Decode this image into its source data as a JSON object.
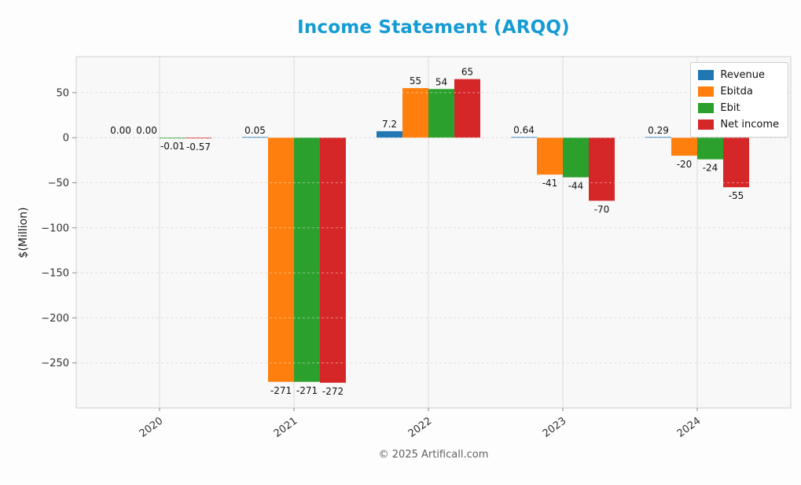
{
  "page": {
    "footer": "© 2025 Artificall.com"
  },
  "chart_data": {
    "type": "bar",
    "title": "Income Statement (ARQQ)",
    "title_color": "#159bd4",
    "xlabel": "",
    "ylabel": "$(Million)",
    "categories": [
      "2020",
      "2021",
      "2022",
      "2023",
      "2024"
    ],
    "series": [
      {
        "name": "Revenue",
        "color": "#1f77b4",
        "values": [
          0.0,
          0.05,
          7.2,
          0.64,
          0.29
        ],
        "labels": [
          "0.00",
          "0.05",
          "7.2",
          "0.64",
          "0.29"
        ]
      },
      {
        "name": "Ebitda",
        "color": "#ff7f0e",
        "values": [
          0.0,
          -271,
          55,
          -41,
          -20
        ],
        "labels": [
          "0.00",
          "-271",
          "55",
          "-41",
          "-20"
        ]
      },
      {
        "name": "Ebit",
        "color": "#2ca02c",
        "values": [
          -0.01,
          -271,
          54,
          -44,
          -24
        ],
        "labels": [
          "-0.01",
          "-271",
          "54",
          "-44",
          "-24"
        ]
      },
      {
        "name": "Net income",
        "color": "#d62728",
        "values": [
          -0.57,
          -272,
          65,
          -70,
          -55
        ],
        "labels": [
          "-0.57",
          "-272",
          "65",
          "-70",
          "-55"
        ]
      }
    ],
    "ylim": [
      -300,
      90
    ],
    "yticks": [
      50,
      0,
      -50,
      -100,
      -150,
      -200,
      -250
    ],
    "grid": true,
    "legend_position": "upper right",
    "figure_background": "#fdfdfd",
    "plot_background": "#f8f8f8",
    "tick_color": "#333333",
    "bar_label_color": "#111111"
  }
}
